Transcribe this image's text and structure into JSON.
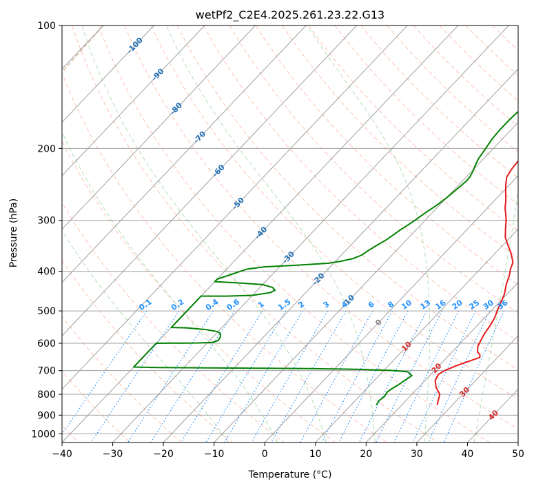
{
  "chart_data": {
    "type": "line",
    "title": "wetPf2_C2E4.2025.261.23.22.G13",
    "xlabel": "Temperature (°C)",
    "ylabel": "Pressure (hPa)",
    "xlim": [
      -40,
      50
    ],
    "ylim": [
      1050,
      100
    ],
    "y_scale": "log",
    "grid": true,
    "x_ticks": [
      -40,
      -30,
      -20,
      -10,
      0,
      10,
      20,
      30,
      40,
      50
    ],
    "y_ticks": [
      100,
      200,
      300,
      400,
      500,
      600,
      700,
      800,
      900,
      1000
    ],
    "x_tick_labels": [
      "−40",
      "−30",
      "−20",
      "−10",
      "0",
      "10",
      "20",
      "30",
      "40",
      "50"
    ],
    "y_tick_labels": [
      "100",
      "200",
      "300",
      "400",
      "500",
      "600",
      "700",
      "800",
      "900",
      "1000"
    ],
    "colors": {
      "temperature": "#e41a1c",
      "dewpoint": "#008000",
      "isotherm": "#a0a0a0",
      "dry_adiabat": "#fc9272",
      "moist_adiabat": "#74c476",
      "mixing_ratio": "#1e90ff",
      "upper_label": "#1f6fb4",
      "lower_label": "#d62728",
      "zero_label": "#808080",
      "brown_curve": "#c8a07a"
    },
    "series": [
      {
        "key": "temperature",
        "points": [
          [
            27,
            850
          ],
          [
            25.5,
            800
          ],
          [
            23.5,
            770
          ],
          [
            22,
            740
          ],
          [
            21.5,
            715
          ],
          [
            22,
            700
          ],
          [
            23.5,
            680
          ],
          [
            25,
            665
          ],
          [
            26.5,
            650
          ],
          [
            26,
            640
          ],
          [
            25,
            630
          ],
          [
            24,
            610
          ],
          [
            23.5,
            590
          ],
          [
            23,
            570
          ],
          [
            22.5,
            540
          ],
          [
            22,
            520
          ],
          [
            21,
            495
          ],
          [
            20.3,
            475
          ],
          [
            19.5,
            455
          ],
          [
            18,
            430
          ],
          [
            17,
            410
          ],
          [
            16,
            395
          ],
          [
            15.2,
            380
          ],
          [
            13,
            360
          ],
          [
            11,
            345
          ],
          [
            9,
            330
          ],
          [
            7.5,
            315
          ],
          [
            6,
            300
          ],
          [
            4.8,
            290
          ],
          [
            3.5,
            280
          ],
          [
            2.2,
            268
          ],
          [
            0.5,
            255
          ],
          [
            -0.8,
            245
          ],
          [
            -2,
            235
          ],
          [
            -2.5,
            225
          ],
          [
            -2.8,
            213
          ],
          [
            -3,
            200
          ],
          [
            -3.2,
            190
          ],
          [
            -3.5,
            180
          ],
          [
            -4,
            170
          ],
          [
            -5,
            160
          ],
          [
            -5.3,
            155
          ],
          [
            -5.3,
            150
          ],
          [
            -4.8,
            145
          ],
          [
            -4.3,
            140
          ],
          [
            -4.3,
            135
          ],
          [
            -5,
            130
          ],
          [
            -6,
            125
          ],
          [
            -7,
            120
          ],
          [
            -7.8,
            115
          ],
          [
            -7.9,
            110
          ],
          [
            -7.5,
            106
          ],
          [
            -7.2,
            100
          ]
        ]
      },
      {
        "key": "dewpoint",
        "points": [
          [
            15,
            850
          ],
          [
            14.7,
            830
          ],
          [
            15,
            810
          ],
          [
            14.7,
            790
          ],
          [
            15,
            775
          ],
          [
            15.5,
            760
          ],
          [
            16,
            740
          ],
          [
            16.5,
            720
          ],
          [
            15,
            705
          ],
          [
            12,
            700
          ],
          [
            5,
            695
          ],
          [
            -5,
            692
          ],
          [
            -20,
            690
          ],
          [
            -35,
            688
          ],
          [
            -40,
            686
          ],
          [
            -40,
            600
          ],
          [
            -32,
            599
          ],
          [
            -29,
            597
          ],
          [
            -28.3,
            590
          ],
          [
            -28.5,
            580
          ],
          [
            -29,
            570
          ],
          [
            -30,
            562
          ],
          [
            -33,
            555
          ],
          [
            -37,
            550
          ],
          [
            -40,
            549
          ],
          [
            -40,
            460
          ],
          [
            -35,
            460
          ],
          [
            -30,
            458
          ],
          [
            -27,
            451
          ],
          [
            -26.5,
            445
          ],
          [
            -27.5,
            438
          ],
          [
            -30,
            431
          ],
          [
            -35,
            427
          ],
          [
            -40,
            424
          ],
          [
            -40,
            418
          ],
          [
            -36,
            395
          ],
          [
            -33,
            390
          ],
          [
            -28,
            387
          ],
          [
            -25,
            385
          ],
          [
            -21,
            382
          ],
          [
            -19,
            378
          ],
          [
            -17,
            372
          ],
          [
            -16,
            365
          ],
          [
            -15.5,
            355
          ],
          [
            -14.8,
            345
          ],
          [
            -14,
            335
          ],
          [
            -13.5,
            325
          ],
          [
            -13,
            315
          ],
          [
            -12.5,
            308
          ],
          [
            -12,
            300
          ],
          [
            -11.5,
            290
          ],
          [
            -10.5,
            275
          ],
          [
            -10,
            265
          ],
          [
            -9.5,
            250
          ],
          [
            -9.2,
            240
          ],
          [
            -9.3,
            235
          ],
          [
            -9.7,
            228
          ],
          [
            -10.4,
            220
          ],
          [
            -11,
            212
          ],
          [
            -11.5,
            200
          ],
          [
            -12,
            190
          ],
          [
            -12.2,
            180
          ],
          [
            -12.2,
            170
          ],
          [
            -12,
            162
          ],
          [
            -11.3,
            155
          ],
          [
            -11,
            148
          ],
          [
            -11.5,
            143
          ],
          [
            -12.3,
            138
          ],
          [
            -13,
            133
          ],
          [
            -13.5,
            128
          ],
          [
            -13.5,
            122
          ],
          [
            -13.3,
            115
          ],
          [
            -13,
            110
          ],
          [
            -12.5,
            105
          ],
          [
            -11.5,
            100
          ]
        ]
      }
    ],
    "isotherms_C": [
      -120,
      -110,
      -100,
      -90,
      -80,
      -70,
      -60,
      -50,
      -40,
      -30,
      -20,
      -10,
      0,
      10,
      20,
      30,
      40,
      50
    ],
    "dry_adiabats_C": [
      -60,
      -50,
      -40,
      -30,
      -20,
      -10,
      0,
      10,
      20,
      30,
      40,
      50,
      60,
      70,
      80,
      90,
      100,
      110,
      120,
      130,
      140,
      150,
      160,
      170,
      180,
      190,
      200
    ],
    "moist_adiabats_C": [
      -10,
      0,
      10,
      20,
      30,
      40,
      50,
      60
    ],
    "mixing_ratio_lines": [
      0.1,
      0.2,
      0.4,
      0.6,
      1,
      1.5,
      2,
      3,
      4,
      6,
      8,
      10,
      13,
      16,
      20,
      25,
      30,
      36
    ],
    "isotherm_labels": [
      {
        "text": "-100",
        "T": -100,
        "p": 112
      },
      {
        "text": "-90",
        "T": -90,
        "p": 132
      },
      {
        "text": "-80",
        "T": -80,
        "p": 160
      },
      {
        "text": "-70",
        "T": -70,
        "p": 188
      },
      {
        "text": "-60",
        "T": -60,
        "p": 227
      },
      {
        "text": "-50",
        "T": -50,
        "p": 273
      },
      {
        "text": "-40",
        "T": -40,
        "p": 322
      },
      {
        "text": "-30",
        "T": -30,
        "p": 370
      },
      {
        "text": "-20",
        "T": -20,
        "p": 418
      },
      {
        "text": "-10",
        "T": -10,
        "p": 473
      },
      {
        "text": "0",
        "T": 0,
        "p": 534
      },
      {
        "text": "10",
        "T": 10,
        "p": 611
      },
      {
        "text": "20",
        "T": 20,
        "p": 691
      },
      {
        "text": "30",
        "T": 30,
        "p": 790
      },
      {
        "text": "40",
        "T": 40,
        "p": 900
      }
    ],
    "mixing_ratio_labels": [
      "0.1",
      "0.2",
      "0.4",
      "0.6",
      "1",
      "1.5",
      "2",
      "3",
      "4",
      "6",
      "8",
      "10",
      "13",
      "16",
      "20",
      "25",
      "30",
      "36"
    ]
  }
}
